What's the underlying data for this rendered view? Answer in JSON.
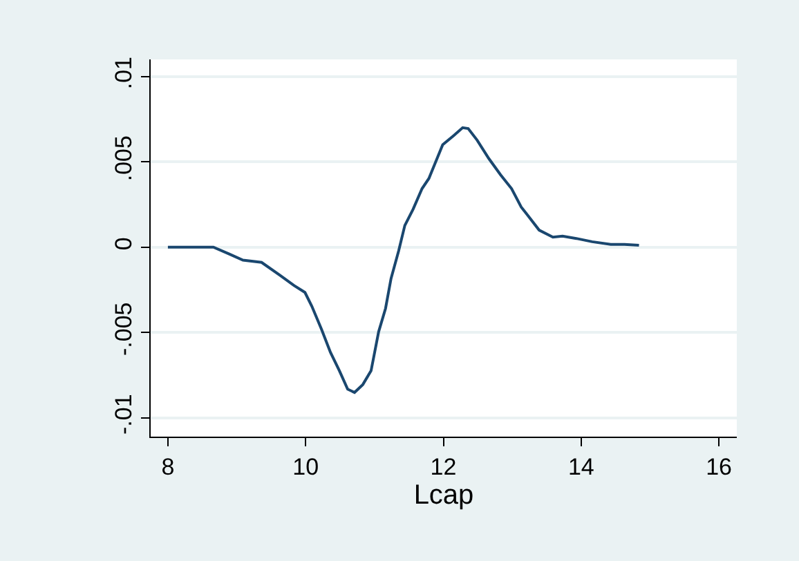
{
  "chart_data": {
    "type": "line",
    "xlabel": "Lcap",
    "x": [
      8,
      8.66,
      8.89,
      9.09,
      9.36,
      9.63,
      9.83,
      9.99,
      10.09,
      10.23,
      10.36,
      10.49,
      10.61,
      10.71,
      10.83,
      10.95,
      11.06,
      11.16,
      11.24,
      11.35,
      11.44,
      11.56,
      11.69,
      11.79,
      11.99,
      12.15,
      12.28,
      12.36,
      12.49,
      12.66,
      12.83,
      12.99,
      13.13,
      13.26,
      13.39,
      13.59,
      13.73,
      13.93,
      14.16,
      14.43,
      14.63,
      14.84
    ],
    "series": [
      {
        "color": "#1a476f",
        "values": [
          0,
          0,
          -0.0004,
          -0.00076,
          -0.00089,
          -0.00165,
          -0.00224,
          -0.00265,
          -0.00346,
          -0.00481,
          -0.00616,
          -0.00724,
          -0.00832,
          -0.00851,
          -0.00805,
          -0.00724,
          -0.00495,
          -0.00359,
          -0.00184,
          -0.00022,
          0.00127,
          0.00222,
          0.00343,
          0.00403,
          0.006,
          0.00654,
          0.007,
          0.00695,
          0.00627,
          0.00519,
          0.00424,
          0.00343,
          0.00235,
          0.00168,
          0.001,
          0.00059,
          0.00065,
          0.00051,
          0.00032,
          0.00016,
          0.00016,
          0.00011
        ]
      }
    ],
    "xlim": [
      7.75,
      16.26
    ],
    "xticks": [
      8,
      10,
      12,
      14,
      16
    ],
    "ylim": [
      -0.0111,
      0.011
    ],
    "yticks": [
      {
        "value": -0.01,
        "label": "-.01"
      },
      {
        "value": -0.005,
        "label": "-.005"
      },
      0,
      {
        "value": 0.005,
        "label": ".005"
      },
      {
        "value": 0.01,
        "label": ".01"
      }
    ],
    "grid": "y",
    "marker": "none",
    "line_style": "solid"
  }
}
